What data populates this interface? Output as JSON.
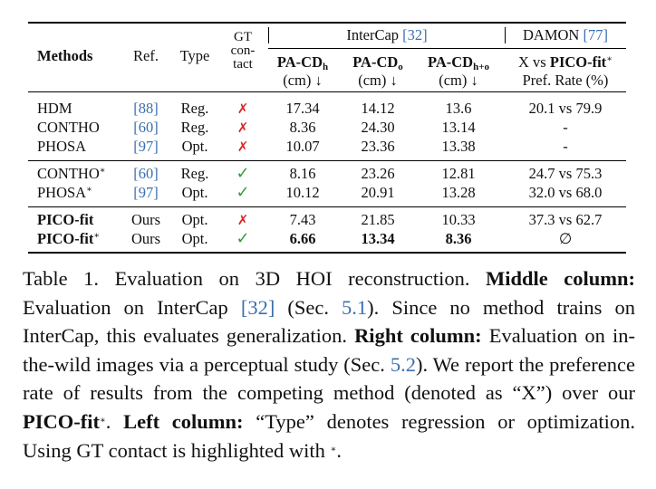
{
  "table": {
    "headers": {
      "methods": "Methods",
      "ref": "Ref.",
      "type": "Type",
      "gt_line1": "GT",
      "gt_line2": "con-",
      "gt_line3": "tact",
      "intercap": "InterCap",
      "intercap_ref": "[32]",
      "damon": "DAMON",
      "damon_ref": "[77]",
      "pa_cd": "PA-CD",
      "sub_h": "h",
      "sub_o": "o",
      "sub_ho": "h+o",
      "unit": "(cm) ↓",
      "damon_line1_prefix": "X vs ",
      "damon_line1_bold": "PICO-fit",
      "star": "∗",
      "damon_line2": "Pref. Rate (%)"
    },
    "rows": [
      {
        "method": "HDM",
        "ref": "[88]",
        "type": "Reg.",
        "gt": "✗",
        "h": "17.34",
        "o": "14.12",
        "ho": "13.6",
        "pref": "20.1 vs 79.9"
      },
      {
        "method": "CONTHO",
        "ref": "[60]",
        "type": "Reg.",
        "gt": "✗",
        "h": "8.36",
        "o": "24.30",
        "ho": "13.14",
        "pref": "-"
      },
      {
        "method": "PHOSA",
        "ref": "[97]",
        "type": "Opt.",
        "gt": "✗",
        "h": "10.07",
        "o": "23.36",
        "ho": "13.38",
        "pref": "-"
      },
      {
        "method": "CONTHO",
        "star": "∗",
        "ref": "[60]",
        "type": "Reg.",
        "gt": "✓",
        "h": "8.16",
        "o": "23.26",
        "ho": "12.81",
        "pref": "24.7 vs 75.3"
      },
      {
        "method": "PHOSA",
        "star": "∗",
        "ref": "[97]",
        "type": "Opt.",
        "gt": "✓",
        "h": "10.12",
        "o": "20.91",
        "ho": "13.28",
        "pref": "32.0 vs 68.0"
      },
      {
        "method": "PICO-fit",
        "ref": "Ours",
        "type": "Opt.",
        "gt": "✗",
        "h": "7.43",
        "o": "21.85",
        "ho": "10.33",
        "pref": "37.3 vs 62.7"
      },
      {
        "method": "PICO-fit",
        "star": "∗",
        "ref": "Ours",
        "type": "Opt.",
        "gt": "✓",
        "h": "6.66",
        "o": "13.34",
        "ho": "8.36",
        "pref": "∅"
      }
    ]
  },
  "caption": {
    "s1": "Table 1.  Evaluation on 3D HOI reconstruction.  ",
    "b1": "Middle column:",
    "s2": " Evaluation on InterCap ",
    "r1": "[32]",
    "s3": " (Sec. ",
    "r2": "5.1",
    "s4": ").  Since no method trains on InterCap, this evaluates generalization. ",
    "b2": "Right column:",
    "s5": " Evaluation on in-the-wild images via a perceptual study (Sec. ",
    "r3": "5.2",
    "s6": ").  We report the preference rate of results from the competing method (denoted as “X”) over our ",
    "b3": "PICO-fit",
    "star": "∗",
    "s7": ".  ",
    "b4": "Left column:",
    "s8": " “Type” denotes regression or optimization. Using GT contact is highlighted with ",
    "s9": "."
  },
  "colors": {
    "ref_link": "#3a6fb0",
    "cross": "#d62828",
    "check": "#2e9e3a"
  }
}
